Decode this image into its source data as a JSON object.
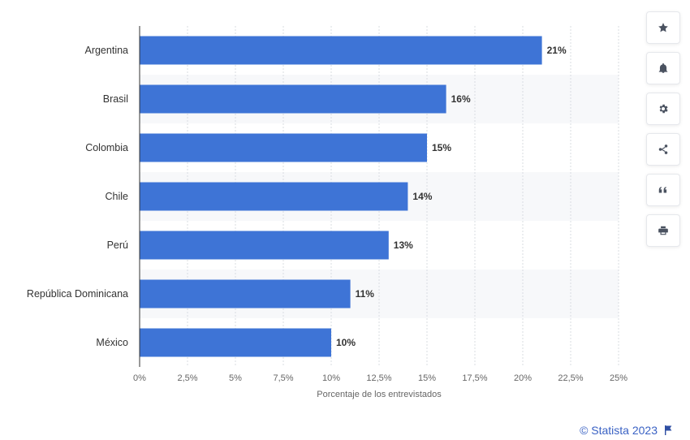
{
  "chart_data": {
    "type": "bar",
    "orientation": "horizontal",
    "categories": [
      "Argentina",
      "Brasil",
      "Colombia",
      "Chile",
      "Perú",
      "República Dominicana",
      "México"
    ],
    "values": [
      21,
      16,
      15,
      14,
      13,
      11,
      10
    ],
    "data_labels": [
      "21%",
      "16%",
      "15%",
      "14%",
      "13%",
      "11%",
      "10%"
    ],
    "xlabel": "Porcentaje de los entrevistados",
    "xlim": [
      0,
      25
    ],
    "x_ticks": [
      0,
      2.5,
      5,
      7.5,
      10,
      12.5,
      15,
      17.5,
      20,
      22.5,
      25
    ],
    "x_tick_labels": [
      "0%",
      "2,5%",
      "5%",
      "7,5%",
      "10%",
      "12,5%",
      "15%",
      "17,5%",
      "20%",
      "22,5%",
      "25%"
    ],
    "grid": true,
    "bar_color": "#3e74d6"
  },
  "toolbar": {
    "buttons": [
      {
        "name": "favorite-button",
        "icon": "star-icon"
      },
      {
        "name": "notification-button",
        "icon": "bell-icon"
      },
      {
        "name": "settings-button",
        "icon": "gear-icon"
      },
      {
        "name": "share-button",
        "icon": "share-icon"
      },
      {
        "name": "cite-button",
        "icon": "quote-icon"
      },
      {
        "name": "print-button",
        "icon": "printer-icon"
      }
    ]
  },
  "footer": {
    "credit": "© Statista 2023"
  }
}
